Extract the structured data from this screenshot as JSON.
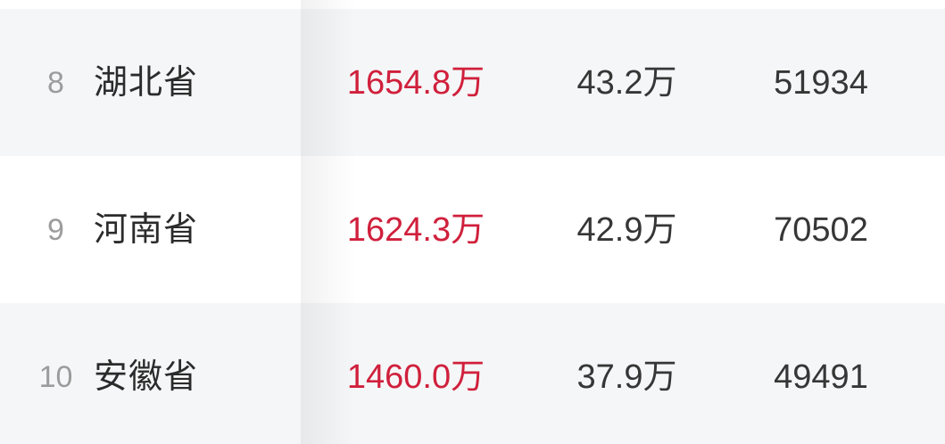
{
  "table": {
    "rows": [
      {
        "rank": "8",
        "province": "湖北省",
        "primary_value": "1654.8万",
        "secondary_value": "43.2万",
        "third_value": "51934"
      },
      {
        "rank": "9",
        "province": "河南省",
        "primary_value": "1624.3万",
        "secondary_value": "42.9万",
        "third_value": "70502"
      },
      {
        "rank": "10",
        "province": "安徽省",
        "primary_value": "1460.0万",
        "secondary_value": "37.9万",
        "third_value": "49491"
      }
    ],
    "colors": {
      "highlight_value": "#d0203c",
      "row_stripe": "#f5f6f7",
      "rank_text": "#9c9c9c",
      "body_text": "#2b2b2b",
      "background": "#ffffff"
    }
  }
}
